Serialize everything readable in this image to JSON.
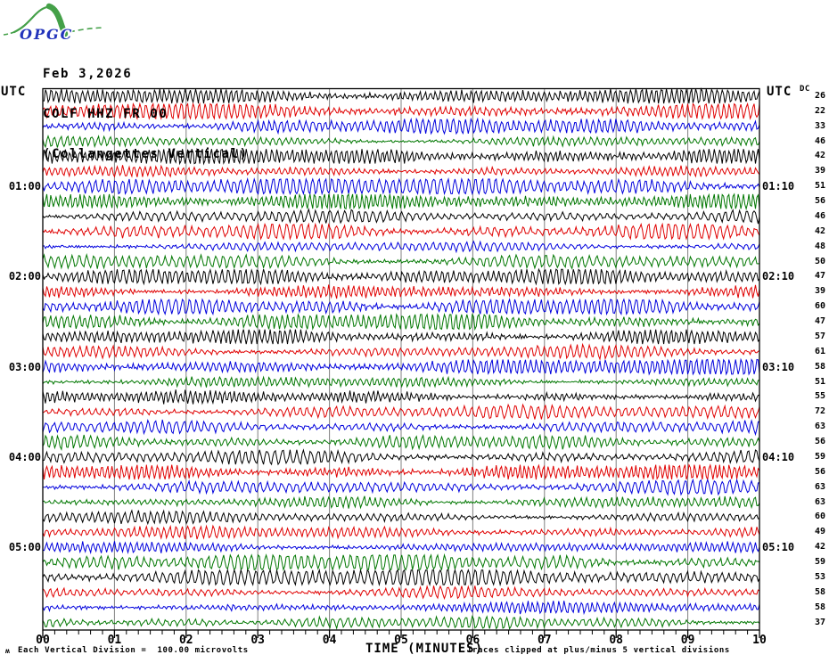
{
  "header": {
    "logo_text": "OPGC",
    "date": "Feb 3,2026",
    "station": "COLF HHZ FR 00",
    "station_name": "(Collangettes Vertical)"
  },
  "axes": {
    "left_axis_title": "UTC",
    "right_axis_title": "UTC",
    "right_col_header": "DC",
    "xlabel": "TIME (MINUTES)",
    "x_tick_labels": [
      "00",
      "01",
      "02",
      "03",
      "04",
      "05",
      "06",
      "07",
      "08",
      "09",
      "10"
    ]
  },
  "footer": {
    "margin_glyph": "ʍ",
    "scale_note": "Each Vertical Division =  100.00 microvolts",
    "clip_note": "Traces clipped at plus/minus 5 vertical divisions"
  },
  "colors": {
    "trace_black": "#000000",
    "trace_red": "#e00000",
    "trace_blue": "#0000dd",
    "trace_green": "#007700",
    "grid": "#808080",
    "frame": "#000000",
    "logo_green": "#44a048",
    "logo_blue": "#2233bb"
  },
  "chart_data": {
    "type": "line",
    "title": "COLF HHZ FR 00 (Collangettes Vertical) helicorder, Feb 3,2026",
    "xlabel": "TIME (MINUTES)",
    "x_range_minutes": [
      0,
      10
    ],
    "minutes_per_row": 10,
    "rows_per_hour": 6,
    "grid_interval_minutes": 1,
    "minor_tick_seconds": 10,
    "units_per_division": "100.00 microvolts",
    "clip_divisions": 5,
    "left_hour_labels": [
      {
        "row": 6,
        "label": "01:00"
      },
      {
        "row": 12,
        "label": "02:00"
      },
      {
        "row": 18,
        "label": "03:00"
      },
      {
        "row": 24,
        "label": "04:00"
      },
      {
        "row": 30,
        "label": "05:00"
      }
    ],
    "right_hour_labels": [
      {
        "row": 6,
        "label": "01:10"
      },
      {
        "row": 12,
        "label": "02:10"
      },
      {
        "row": 18,
        "label": "03:10"
      },
      {
        "row": 24,
        "label": "04:10"
      },
      {
        "row": 30,
        "label": "05:10"
      }
    ],
    "rows": [
      {
        "start": "00:00",
        "end": "00:10",
        "color": "black",
        "dc": 26
      },
      {
        "start": "00:10",
        "end": "00:20",
        "color": "red",
        "dc": 22
      },
      {
        "start": "00:20",
        "end": "00:30",
        "color": "blue",
        "dc": 33
      },
      {
        "start": "00:30",
        "end": "00:40",
        "color": "green",
        "dc": 46
      },
      {
        "start": "00:40",
        "end": "00:50",
        "color": "black",
        "dc": 42
      },
      {
        "start": "00:50",
        "end": "01:00",
        "color": "red",
        "dc": 39
      },
      {
        "start": "01:00",
        "end": "01:10",
        "color": "blue",
        "dc": 51
      },
      {
        "start": "01:10",
        "end": "01:20",
        "color": "green",
        "dc": 56
      },
      {
        "start": "01:20",
        "end": "01:30",
        "color": "black",
        "dc": 46
      },
      {
        "start": "01:30",
        "end": "01:40",
        "color": "red",
        "dc": 42
      },
      {
        "start": "01:40",
        "end": "01:50",
        "color": "blue",
        "dc": 48
      },
      {
        "start": "01:50",
        "end": "02:00",
        "color": "green",
        "dc": 50
      },
      {
        "start": "02:00",
        "end": "02:10",
        "color": "black",
        "dc": 47
      },
      {
        "start": "02:10",
        "end": "02:20",
        "color": "red",
        "dc": 39
      },
      {
        "start": "02:20",
        "end": "02:30",
        "color": "blue",
        "dc": 60
      },
      {
        "start": "02:30",
        "end": "02:40",
        "color": "green",
        "dc": 47
      },
      {
        "start": "02:40",
        "end": "02:50",
        "color": "black",
        "dc": 57
      },
      {
        "start": "02:50",
        "end": "03:00",
        "color": "red",
        "dc": 61
      },
      {
        "start": "03:00",
        "end": "03:10",
        "color": "blue",
        "dc": 58
      },
      {
        "start": "03:10",
        "end": "03:20",
        "color": "green",
        "dc": 51
      },
      {
        "start": "03:20",
        "end": "03:30",
        "color": "black",
        "dc": 55
      },
      {
        "start": "03:30",
        "end": "03:40",
        "color": "red",
        "dc": 72
      },
      {
        "start": "03:40",
        "end": "03:50",
        "color": "blue",
        "dc": 63
      },
      {
        "start": "03:50",
        "end": "04:00",
        "color": "green",
        "dc": 56
      },
      {
        "start": "04:00",
        "end": "04:10",
        "color": "black",
        "dc": 59
      },
      {
        "start": "04:10",
        "end": "04:20",
        "color": "red",
        "dc": 56
      },
      {
        "start": "04:20",
        "end": "04:30",
        "color": "blue",
        "dc": 63
      },
      {
        "start": "04:30",
        "end": "04:40",
        "color": "green",
        "dc": 63
      },
      {
        "start": "04:40",
        "end": "04:50",
        "color": "black",
        "dc": 60
      },
      {
        "start": "04:50",
        "end": "05:00",
        "color": "red",
        "dc": 49
      },
      {
        "start": "05:00",
        "end": "05:10",
        "color": "blue",
        "dc": 42
      },
      {
        "start": "05:10",
        "end": "05:20",
        "color": "green",
        "dc": 59
      },
      {
        "start": "05:20",
        "end": "05:30",
        "color": "black",
        "dc": 53
      },
      {
        "start": "05:30",
        "end": "05:40",
        "color": "red",
        "dc": 58
      },
      {
        "start": "05:40",
        "end": "05:50",
        "color": "blue",
        "dc": 58
      },
      {
        "start": "05:50",
        "end": "06:00",
        "color": "green",
        "dc": 37
      }
    ]
  }
}
